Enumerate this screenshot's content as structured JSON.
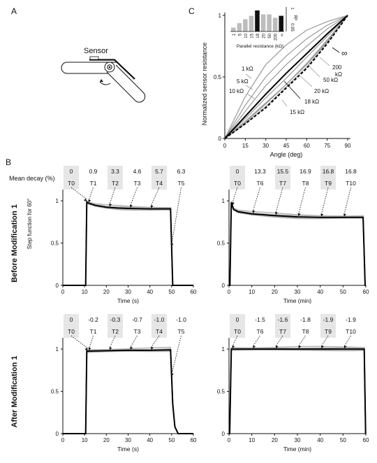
{
  "panel_letters": {
    "a": "A",
    "b": "B",
    "c": "C"
  },
  "panel_a": {
    "sensor_label": "Sensor"
  },
  "panel_b": {
    "row_labels": [
      "Before Modification 1",
      "After Modification 1"
    ],
    "mean_decay_label": "Mean decay (%)",
    "step_label": "Step function for 60°"
  },
  "colors": {
    "mean": "#000000",
    "trial": "#b5b5b5",
    "box": "#e6e6e6",
    "mid": "#9a9a9a"
  },
  "chart_data": [
    {
      "id": "c",
      "type": "line",
      "title": "",
      "xlabel": "Angle (deg)",
      "ylabel": "Normalized sensor resistance",
      "xlim": [
        0,
        90
      ],
      "ylim": [
        0,
        1
      ],
      "xticks": [
        0,
        15,
        30,
        45,
        60,
        75,
        90
      ],
      "xtick_labels": [
        "0",
        "15",
        "30",
        "45",
        "60",
        "75",
        "90"
      ],
      "yticks": [
        0,
        0.5,
        1
      ],
      "ytick_labels": [
        "0",
        "0.5",
        "1"
      ],
      "x": [
        0,
        15,
        30,
        45,
        60,
        75,
        90
      ],
      "series": [
        {
          "name": "1 kΩ",
          "values": [
            0,
            0.34,
            0.6,
            0.76,
            0.88,
            0.95,
            1
          ],
          "style": "gray"
        },
        {
          "name": "5 kΩ",
          "values": [
            0,
            0.27,
            0.5,
            0.67,
            0.81,
            0.92,
            1
          ],
          "style": "gray"
        },
        {
          "name": "10 kΩ",
          "values": [
            0,
            0.22,
            0.43,
            0.6,
            0.75,
            0.89,
            1
          ],
          "style": "gray"
        },
        {
          "name": "15 kΩ",
          "values": [
            0,
            0.14,
            0.29,
            0.44,
            0.61,
            0.8,
            1
          ],
          "style": "gray"
        },
        {
          "name": "18 kΩ",
          "values": [
            0,
            0.18,
            0.36,
            0.53,
            0.69,
            0.85,
            1
          ],
          "style": "black"
        },
        {
          "name": "20 kΩ",
          "values": [
            0,
            0.16,
            0.33,
            0.49,
            0.66,
            0.83,
            1
          ],
          "style": "gray"
        },
        {
          "name": "50 kΩ",
          "values": [
            0,
            0.13,
            0.28,
            0.44,
            0.6,
            0.79,
            1
          ],
          "style": "gray"
        },
        {
          "name": "200 kΩ",
          "values": [
            0,
            0.12,
            0.26,
            0.42,
            0.58,
            0.78,
            1
          ],
          "style": "gray"
        },
        {
          "name": "∞",
          "values": [
            0,
            0.12,
            0.25,
            0.41,
            0.57,
            0.77,
            1
          ],
          "style": "dashed"
        }
      ],
      "inset": {
        "type": "bar",
        "xlabel": "Parallel resistance (kΩ)",
        "ylabel": "R²",
        "ylim": [
          0.95,
          1
        ],
        "ytick_labels": [
          "0.95",
          "1"
        ],
        "categories": [
          "1",
          "5",
          "10",
          "15",
          "18",
          "20",
          "50",
          "200",
          "∞"
        ],
        "values": [
          0.958,
          0.967,
          0.975,
          0.982,
          0.993,
          0.985,
          0.985,
          0.978,
          0.982
        ],
        "highlight": [
          "18",
          "∞"
        ]
      }
    },
    {
      "id": "b1",
      "type": "line",
      "xlabel": "Time (s)",
      "xlim": [
        0,
        60
      ],
      "ylim": [
        0,
        1.1
      ],
      "xticks": [
        0,
        10,
        20,
        30,
        40,
        50,
        60
      ],
      "xtick_labels": [
        "0",
        "10",
        "20",
        "30",
        "40",
        "50",
        "60"
      ],
      "yticks": [
        0,
        0.5,
        1
      ],
      "ytick_labels": [
        "0",
        "0.5",
        "1"
      ],
      "markers": [
        {
          "label": "T0",
          "decay": "0",
          "x": 11
        },
        {
          "label": "T1",
          "decay": "0.9",
          "x": 11.9
        },
        {
          "label": "T2",
          "decay": "3.3",
          "x": 21.5
        },
        {
          "label": "T3",
          "decay": "4.6",
          "x": 31
        },
        {
          "label": "T4",
          "decay": "5.7",
          "x": 40.5
        },
        {
          "label": "T5",
          "decay": "6.3",
          "x": 50
        }
      ],
      "mean": {
        "x": [
          0,
          10.5,
          11,
          12,
          15,
          20,
          25,
          30,
          40,
          49.5,
          50.5,
          60
        ],
        "y": [
          0,
          0,
          0.985,
          0.97,
          0.945,
          0.925,
          0.915,
          0.91,
          0.905,
          0.905,
          0,
          0
        ]
      }
    },
    {
      "id": "b2",
      "type": "line",
      "xlabel": "Time (min)",
      "xlim": [
        0,
        60
      ],
      "ylim": [
        0,
        1.1
      ],
      "xticks": [
        0,
        10,
        20,
        30,
        40,
        50,
        60
      ],
      "xtick_labels": [
        "0",
        "10",
        "20",
        "30",
        "40",
        "50",
        "60"
      ],
      "yticks": [
        0,
        0.5,
        1
      ],
      "ytick_labels": [
        "0",
        "0.5",
        "1"
      ],
      "markers": [
        {
          "label": "T0",
          "decay": "0",
          "x": 1.5
        },
        {
          "label": "T6",
          "decay": "13.3",
          "x": 10.5
        },
        {
          "label": "T7",
          "decay": "15.5",
          "x": 20.5
        },
        {
          "label": "T8",
          "decay": "16.9",
          "x": 30.5
        },
        {
          "label": "T9",
          "decay": "16.8",
          "x": 40.5
        },
        {
          "label": "T10",
          "decay": "16.8",
          "x": 50.5
        }
      ],
      "mean": {
        "x": [
          0,
          0.4,
          1,
          2,
          4,
          10,
          20,
          30,
          40,
          50,
          58.8,
          59.7,
          60
        ],
        "y": [
          0,
          0,
          0.98,
          0.9,
          0.87,
          0.845,
          0.825,
          0.81,
          0.805,
          0.805,
          0.805,
          0,
          0
        ]
      }
    },
    {
      "id": "b3",
      "type": "line",
      "xlabel": "Time (s)",
      "xlim": [
        0,
        60
      ],
      "ylim": [
        0,
        1.1
      ],
      "xticks": [
        0,
        10,
        20,
        30,
        40,
        50,
        60
      ],
      "xtick_labels": [
        "0",
        "10",
        "20",
        "30",
        "40",
        "50",
        "60"
      ],
      "yticks": [
        0,
        0.5,
        1
      ],
      "ytick_labels": [
        "0",
        "0.5",
        "1"
      ],
      "markers": [
        {
          "label": "T0",
          "decay": "0",
          "x": 11.5
        },
        {
          "label": "T1",
          "decay": "-0.2",
          "x": 12
        },
        {
          "label": "T2",
          "decay": "-0.3",
          "x": 21.5
        },
        {
          "label": "T3",
          "decay": "-0.7",
          "x": 31
        },
        {
          "label": "T4",
          "decay": "-1.0",
          "x": 40.5
        },
        {
          "label": "T5",
          "decay": "-1.0",
          "x": 50
        }
      ],
      "mean": {
        "x": [
          0,
          10.5,
          11,
          20,
          30,
          40,
          49.5,
          50.5,
          51.5,
          53,
          60
        ],
        "y": [
          0,
          0,
          0.975,
          0.98,
          0.985,
          0.985,
          0.99,
          0.35,
          0.08,
          0,
          0
        ]
      }
    },
    {
      "id": "b4",
      "type": "line",
      "xlabel": "Time (min)",
      "xlim": [
        0,
        60
      ],
      "ylim": [
        0,
        1.1
      ],
      "xticks": [
        0,
        10,
        20,
        30,
        40,
        50,
        60
      ],
      "xtick_labels": [
        "0",
        "10",
        "20",
        "30",
        "40",
        "50",
        "60"
      ],
      "yticks": [
        0,
        0.5,
        1
      ],
      "ytick_labels": [
        "0",
        "0.5",
        "1"
      ],
      "markers": [
        {
          "label": "T0",
          "decay": "0",
          "x": 1.5
        },
        {
          "label": "T6",
          "decay": "-1.5",
          "x": 10.5
        },
        {
          "label": "T7",
          "decay": "-1.6",
          "x": 20.5
        },
        {
          "label": "T8",
          "decay": "-1.8",
          "x": 30.5
        },
        {
          "label": "T9",
          "decay": "-1.9",
          "x": 40.5
        },
        {
          "label": "T10",
          "decay": "-1.9",
          "x": 50.5
        }
      ],
      "mean": {
        "x": [
          0,
          0.3,
          1,
          10,
          20,
          30,
          40,
          50,
          59.3,
          59.9,
          60
        ],
        "y": [
          0,
          0,
          1.0,
          1.0,
          1.0,
          1.0,
          1.0,
          1.0,
          1.0,
          0,
          0
        ]
      }
    }
  ]
}
